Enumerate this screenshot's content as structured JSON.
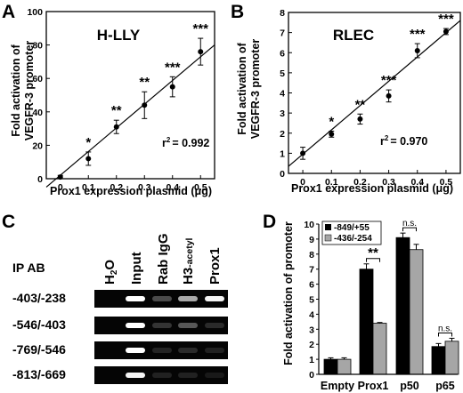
{
  "panels": {
    "A": {
      "letter": "A",
      "title": "H-LLY",
      "r2_label": "r",
      "r2_sup": "2",
      "r2_value": "= 0.992"
    },
    "B": {
      "letter": "B",
      "title": "RLEC",
      "r2_label": "r",
      "r2_sup": "2",
      "r2_value": "= 0.970"
    },
    "C": {
      "letter": "C",
      "ip_ab_label": "IP AB",
      "lanes": [
        "H2O",
        "Input",
        "Rab IgG",
        "H3-acetyl",
        "Prox1"
      ],
      "rows": [
        "-403/-238",
        "-546/-403",
        "-769/-546",
        "-813/-669"
      ],
      "band_intensity": [
        [
          0,
          1.0,
          0.3,
          0.6,
          0.95
        ],
        [
          0,
          1.0,
          0.2,
          0.35,
          0.15
        ],
        [
          0,
          1.0,
          0.12,
          0.15,
          0.1
        ],
        [
          0,
          0.95,
          0.1,
          0.1,
          0.05
        ]
      ]
    },
    "D": {
      "letter": "D"
    }
  },
  "chart_data": [
    {
      "panel": "A",
      "type": "scatter",
      "title": "H-LLY",
      "xlabel": "Prox1 expression plasmid (μg)",
      "ylabel": "Fold activation of VEGFR-3 promoter",
      "x": [
        0,
        0.1,
        0.2,
        0.3,
        0.4,
        0.5
      ],
      "y": [
        1,
        12,
        31,
        44,
        55,
        76
      ],
      "err": [
        1,
        4,
        4,
        8,
        6,
        8
      ],
      "significance": [
        "",
        "*",
        "**",
        "**",
        "***",
        "***"
      ],
      "xlim": [
        -0.05,
        0.55
      ],
      "ylim": [
        0,
        100
      ],
      "xticks": [
        "0",
        "0.1",
        "0.2",
        "0.3",
        "0.4",
        "0.5"
      ],
      "yticks": [
        "0",
        "20",
        "40",
        "60",
        "80",
        "100"
      ],
      "fit": {
        "x0": -0.05,
        "y0": -5,
        "x1": 0.55,
        "y1": 80
      },
      "r2": "0.992"
    },
    {
      "panel": "B",
      "type": "scatter",
      "title": "RLEC",
      "xlabel": "Prox1 expression plasmid (μg)",
      "ylabel": "Fold activation of VEGFR-3 promoter",
      "x": [
        0,
        0.1,
        0.2,
        0.3,
        0.4,
        0.5
      ],
      "y": [
        1.0,
        1.95,
        2.7,
        3.85,
        6.1,
        7.05
      ],
      "err": [
        0.3,
        0.15,
        0.25,
        0.3,
        0.35,
        0.15
      ],
      "significance": [
        "",
        "*",
        "**",
        "***",
        "***",
        "***"
      ],
      "xlim": [
        -0.05,
        0.55
      ],
      "ylim": [
        0,
        8
      ],
      "xticks": [
        "0",
        "0.1",
        "0.2",
        "0.3",
        "0.4",
        "0.5"
      ],
      "yticks": [
        "0",
        "1",
        "2",
        "3",
        "4",
        "5",
        "6",
        "7",
        "8"
      ],
      "fit": {
        "x0": -0.05,
        "y0": 0.35,
        "x1": 0.55,
        "y1": 7.6
      },
      "r2": "0.970"
    },
    {
      "panel": "D",
      "type": "bar",
      "xlabel": "",
      "ylabel": "Fold activation of promoter",
      "categories": [
        "Empty",
        "Prox1",
        "p50",
        "p65"
      ],
      "series": [
        {
          "name": "-849/+55",
          "color": "#000000",
          "values": [
            1.0,
            7.0,
            9.1,
            1.85
          ],
          "err": [
            0.1,
            0.35,
            0.3,
            0.2
          ]
        },
        {
          "name": "-436/-254",
          "color": "#a6a6a6",
          "values": [
            1.0,
            3.4,
            8.3,
            2.2
          ],
          "err": [
            0.1,
            0.05,
            0.35,
            0.2
          ]
        }
      ],
      "ylim": [
        0,
        10
      ],
      "yticks": [
        "0",
        "1",
        "2",
        "3",
        "4",
        "5",
        "6",
        "7",
        "8",
        "9",
        "10"
      ],
      "legend": "top-left",
      "comparisons": [
        {
          "category": "Prox1",
          "label": "**"
        },
        {
          "category": "p50",
          "label": "n.s."
        },
        {
          "category": "p65",
          "label": "n.s."
        }
      ]
    }
  ]
}
